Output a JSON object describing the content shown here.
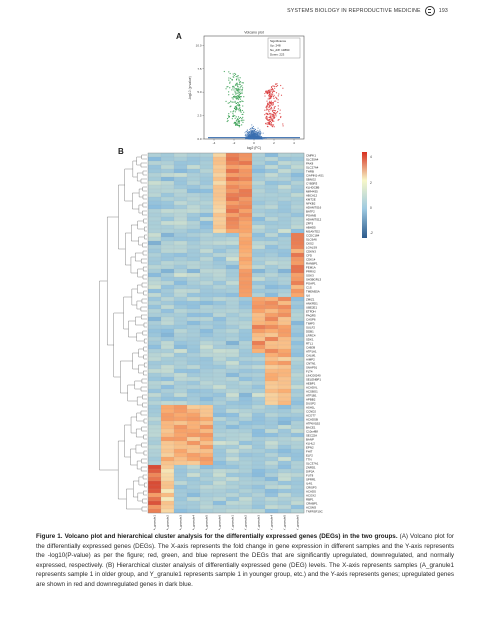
{
  "header": {
    "running_title": "SYSTEMS BIOLOGY IN REPRODUCTIVE MEDICINE",
    "page_number": "193"
  },
  "panels": {
    "a": "A",
    "b": "B"
  },
  "volcano": {
    "title": "Volcano plot",
    "xlabel": "log2 (FC)",
    "ylabel": "-log10 (p value)",
    "x_ticks": [
      "-4",
      "-2",
      "0",
      "2",
      "4"
    ],
    "y_ticks": [
      "0.0",
      "2.5",
      "5.0",
      "7.5",
      "10.0"
    ],
    "legend": [
      "Significance",
      "Up: 248",
      "No_diff: 13890",
      "Down: 223"
    ]
  },
  "heatmap": {
    "scale_ticks": [
      "4",
      "2",
      "0",
      "-2"
    ],
    "samples": [
      "A_granule1",
      "A_granule2",
      "A_granule3",
      "A_granule4",
      "A_granule5",
      "A_granule6",
      "Y_granule1",
      "Y_granule2",
      "Y_granule3",
      "Y_granule4",
      "Y_granule5",
      "Y_granule6"
    ],
    "genes": [
      "CMPK1",
      "SLC35A4",
      "PAX8",
      "SLC27A4",
      "THRB",
      "CIAPIN1-AS1",
      "SBNO2",
      "CYB5R3",
      "KLHDC8B",
      "MIR4435",
      "ABCA12",
      "KMT2E",
      "NFKB2",
      "ADAMTS16",
      "BATF2",
      "PGAM5",
      "ADAMTS12",
      "ZFP3",
      "ABHD5",
      "MSANTD2",
      "CCDC184",
      "SLC6A6",
      "CKS2",
      "LGALS9",
      "CDKN3",
      "CFD",
      "CDK14",
      "RANBP1",
      "FEM1A",
      "PRRX2",
      "SGK3",
      "SH3BGRL3",
      "PGAP1",
      "C1S",
      "TMEM55A",
      "IL6",
      "ZMIZ1",
      "ANKRD1",
      "UBE2E1",
      "ETFDH",
      "PAQR5",
      "CASP6",
      "TIMP3",
      "SULF2",
      "DDB1",
      "LRRC4",
      "SDK1",
      "RTL1",
      "CAB39",
      "ATP1A1",
      "CALM1",
      "AIMP2",
      "CNTN1",
      "SNAP91",
      "FLT4",
      "LINC00240",
      "SELENBP1",
      "AEBP1",
      "ACADVL",
      "ACSBG1",
      "ATP1B1",
      "APBB2",
      "DUSP2",
      "ASH1L",
      "CCND2",
      "ACOT7",
      "ACADSB",
      "ATP6V1B2",
      "BACE1",
      "C10orf88",
      "SEC22A",
      "BANP",
      "KLHL2",
      "EPN2",
      "FHIT",
      "ELF2",
      "TTN",
      "SLC37A1",
      "ZNRD1",
      "DIP2A",
      "FUT8",
      "SPRR1",
      "IL4I1",
      "CRISP3",
      "ACADS",
      "ACOX2",
      "RBP1",
      "CRABP1",
      "ACSM3",
      "TNFRSF10C"
    ],
    "matrix": []
  },
  "caption": {
    "label": "Figure 1.",
    "title": "Volcano plot and hierarchical cluster analysis for the differentially expressed genes (DEGs) in the two groups.",
    "body": "(A) Volcano plot for the differentially expressed genes (DEGs). The X-axis represents the fold change in gene expression in different samples and the Y-axis represents the -log10(P-value) as per the figure; red, green, and blue represent the DEGs that are significantly upregulated, downregulated, and normally expressed, respectively. (B) Hierarchical cluster analysis of differentially expressed gene (DEG) levels. The X-axis represents samples (A_granule1 represents sample 1 in older group, and Y_granule1 represents sample 1 in younger group, etc.) and the Y-axis represents genes; upregulated genes are shown in red and downregulated genes in dark blue."
  }
}
